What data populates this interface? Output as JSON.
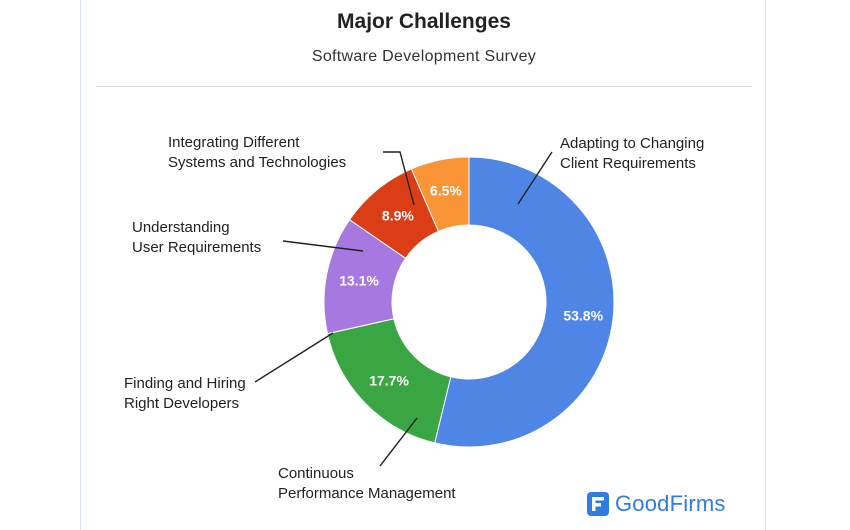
{
  "chart_data": {
    "type": "pie",
    "variant": "donut",
    "title": "Major Challenges",
    "subtitle": "Software Development Survey",
    "slices": [
      {
        "label": "Adapting to Changing Client Requirements",
        "label_lines": [
          "Adapting to Changing",
          "Client Requirements"
        ],
        "value": 53.8,
        "value_label": "53.8%",
        "color": "#4f86e6"
      },
      {
        "label": "Continuous Performance Management",
        "label_lines": [
          "Continuous",
          "Performance Management"
        ],
        "value": 17.7,
        "value_label": "17.7%",
        "color": "#3aa543"
      },
      {
        "label": "Finding and Hiring Right Developers",
        "label_lines": [
          "Finding and Hiring",
          "Right Developers"
        ],
        "value": 13.1,
        "value_label": "13.1%",
        "color": "#a778e0"
      },
      {
        "label": "Understanding User Requirements",
        "label_lines": [
          "Understanding",
          "User Requirements"
        ],
        "value": 8.9,
        "value_label": "8.9%",
        "color": "#db3d17"
      },
      {
        "label": "Integrating Different Systems and Technologies",
        "label_lines": [
          "Integrating Different",
          "Systems and Technologies"
        ],
        "value": 6.5,
        "value_label": "6.5%",
        "color": "#f99537"
      }
    ],
    "start": "12 o'clock",
    "direction": "clockwise"
  },
  "brand": {
    "name": "GoodFirms",
    "color": "#2f7de1",
    "icon": "goodfirms-logo-icon"
  }
}
